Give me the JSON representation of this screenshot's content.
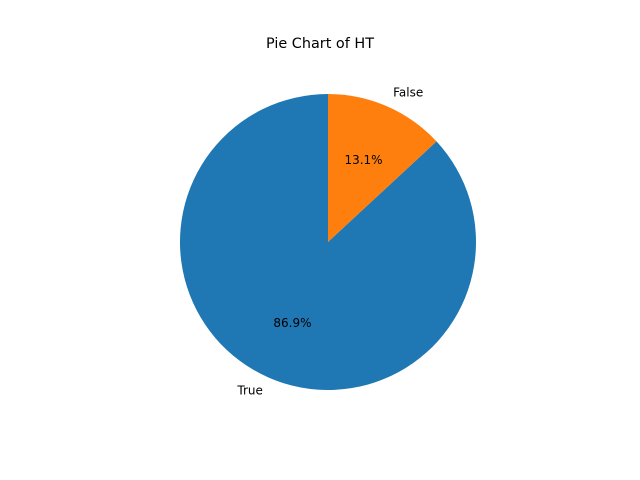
{
  "chart_data": {
    "type": "pie",
    "title": "Pie Chart of HT",
    "start_angle_deg": 90,
    "direction": "counterclockwise",
    "slices": [
      {
        "label": "True",
        "value": 86.9,
        "percent_label": "86.9%",
        "color": "#1f77b4"
      },
      {
        "label": "False",
        "value": 13.1,
        "percent_label": "13.1%",
        "color": "#ff7f0e"
      }
    ],
    "legend": "none",
    "grid": false
  }
}
